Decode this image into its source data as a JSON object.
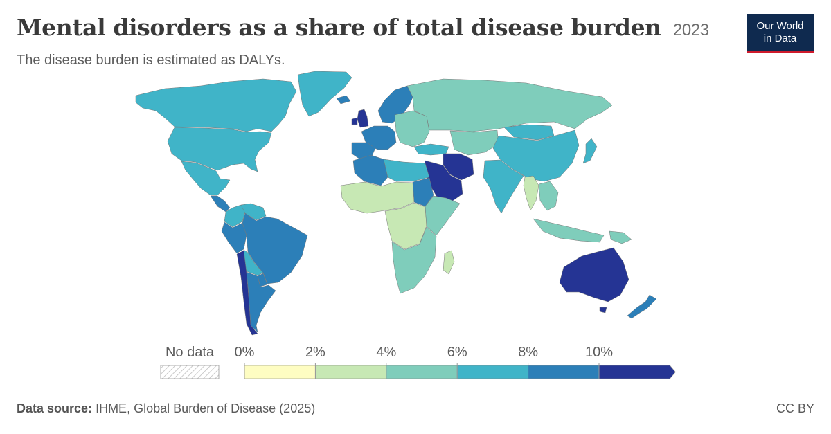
{
  "header": {
    "title": "Mental disorders as a share of total disease burden",
    "year": "2023",
    "subtitle": "The disease burden is estimated as DALYs."
  },
  "logo": {
    "line1": "Our World",
    "line2": "in Data"
  },
  "legend": {
    "no_data_label": "No data",
    "bins": [
      {
        "from": 0,
        "to": 2,
        "color": "#fefdc2"
      },
      {
        "from": 2,
        "to": 4,
        "color": "#c7e8b4"
      },
      {
        "from": 4,
        "to": 6,
        "color": "#7fcdbb"
      },
      {
        "from": 6,
        "to": 8,
        "color": "#40b4c8"
      },
      {
        "from": 8,
        "to": 10,
        "color": "#2c7fb8"
      },
      {
        "from": 10,
        "to": null,
        "color": "#253494"
      }
    ],
    "tick_labels": [
      "0%",
      "2%",
      "4%",
      "6%",
      "8%",
      "10%"
    ]
  },
  "chart_data": {
    "type": "choropleth",
    "metric": "Mental disorders share of total DALYs",
    "unit": "%",
    "year": "2023",
    "regions": [
      {
        "name": "Canada",
        "value": 7
      },
      {
        "name": "United States",
        "value": 7
      },
      {
        "name": "Mexico",
        "value": 7
      },
      {
        "name": "Central America",
        "value": 9
      },
      {
        "name": "Colombia",
        "value": 7
      },
      {
        "name": "Venezuela",
        "value": 7
      },
      {
        "name": "Brazil",
        "value": 9
      },
      {
        "name": "Peru",
        "value": 9
      },
      {
        "name": "Bolivia",
        "value": 7
      },
      {
        "name": "Paraguay",
        "value": 9
      },
      {
        "name": "Argentina",
        "value": 9
      },
      {
        "name": "Chile",
        "value": 11
      },
      {
        "name": "Greenland",
        "value": 7
      },
      {
        "name": "Iceland",
        "value": 9
      },
      {
        "name": "United Kingdom",
        "value": 11
      },
      {
        "name": "Ireland",
        "value": 11
      },
      {
        "name": "Scandinavia",
        "value": 9
      },
      {
        "name": "Western Europe",
        "value": 9
      },
      {
        "name": "Spain & Portugal",
        "value": 9
      },
      {
        "name": "Eastern Europe",
        "value": 5
      },
      {
        "name": "Russia",
        "value": 5
      },
      {
        "name": "Central Asia",
        "value": 5
      },
      {
        "name": "China",
        "value": 7
      },
      {
        "name": "Mongolia",
        "value": 7
      },
      {
        "name": "India",
        "value": 7
      },
      {
        "name": "Myanmar & Thailand",
        "value": 3
      },
      {
        "name": "Southeast Asia",
        "value": 5
      },
      {
        "name": "Japan",
        "value": 7
      },
      {
        "name": "Iran",
        "value": 11
      },
      {
        "name": "Saudi Arabia",
        "value": 11
      },
      {
        "name": "Turkey",
        "value": 7
      },
      {
        "name": "North Africa",
        "value": 7
      },
      {
        "name": "Algeria & Morocco",
        "value": 9
      },
      {
        "name": "Sudan",
        "value": 9
      },
      {
        "name": "West Africa",
        "value": 3
      },
      {
        "name": "Central Africa",
        "value": 3
      },
      {
        "name": "East Africa",
        "value": 5
      },
      {
        "name": "Southern Africa",
        "value": 5
      },
      {
        "name": "Madagascar",
        "value": 3
      },
      {
        "name": "Indonesia",
        "value": 5
      },
      {
        "name": "Papua New Guinea",
        "value": 5
      },
      {
        "name": "Australia",
        "value": 11
      },
      {
        "name": "New Zealand",
        "value": 9
      }
    ]
  },
  "footer": {
    "source_label": "Data source:",
    "source_text": "IHME, Global Burden of Disease (2025)",
    "license": "CC BY"
  }
}
